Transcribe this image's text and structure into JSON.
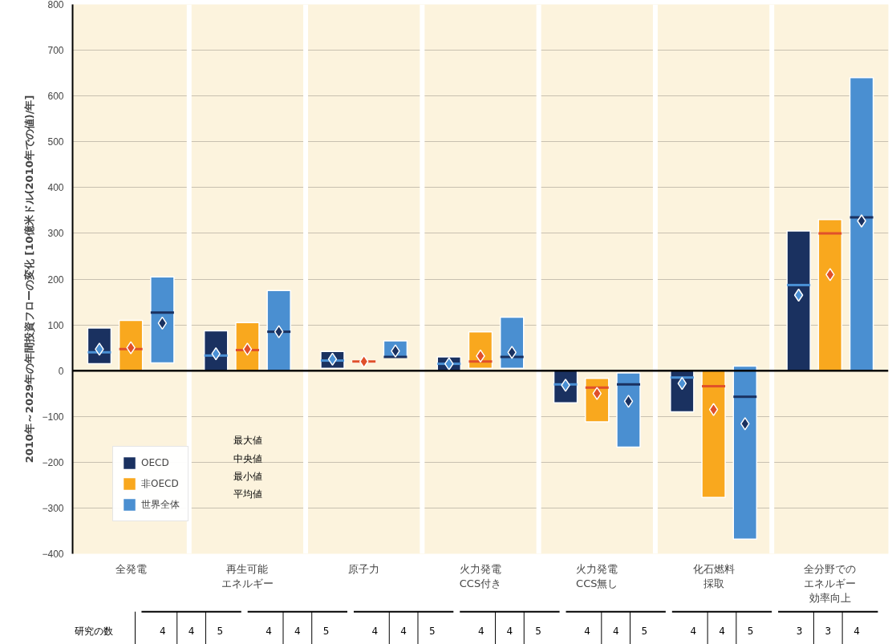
{
  "chart_data": {
    "type": "box",
    "ylabel": "2010年～2029年の年間投資フローの変化 [10億米ドル(2010年での値)/年]",
    "categories": [
      "全発電",
      "再生可能エネルギー",
      "原子力",
      "火力発電\nCCS付き",
      "火力発電\nCCS無し",
      "化石燃料採取",
      "全分野でのエネルギー効率向上"
    ],
    "series": [
      {
        "name": "OECD",
        "color": "#1a3160",
        "boxes": [
          {
            "low": 15,
            "q1": 15,
            "median": 40,
            "q3": 93,
            "high": 93,
            "mean": 47
          },
          {
            "low": 0,
            "q1": 0,
            "median": 33,
            "q3": 87,
            "high": 87,
            "mean": 37
          },
          {
            "low": 5,
            "q1": 5,
            "median": 22,
            "q3": 42,
            "high": 42,
            "mean": 25
          },
          {
            "low": 0,
            "q1": 0,
            "median": 15,
            "q3": 30,
            "high": 30,
            "mean": 15
          },
          {
            "low": -70,
            "q1": -70,
            "median": -30,
            "q3": 0,
            "high": 0,
            "mean": -32
          },
          {
            "low": -90,
            "q1": -90,
            "median": -15,
            "q3": 0,
            "high": 0,
            "mean": -28
          },
          {
            "low": 0,
            "q1": 0,
            "median": 187,
            "q3": 305,
            "high": 305,
            "mean": 165
          }
        ]
      },
      {
        "name": "非OECD",
        "color": "#f9a81e",
        "boxes": [
          {
            "low": 0,
            "q1": 0,
            "median": 47,
            "q3": 110,
            "high": 110,
            "mean": 50
          },
          {
            "low": 0,
            "q1": 0,
            "median": 45,
            "q3": 105,
            "high": 105,
            "mean": 47
          },
          {
            "low": 18,
            "q1": 18,
            "median": 20,
            "q3": 22,
            "high": 22,
            "mean": 20
          },
          {
            "low": 5,
            "q1": 5,
            "median": 20,
            "q3": 85,
            "high": 85,
            "mean": 32
          },
          {
            "low": -112,
            "q1": -112,
            "median": -37,
            "q3": -17,
            "high": -17,
            "mean": -50
          },
          {
            "low": -277,
            "q1": -277,
            "median": -34,
            "q3": 0,
            "high": 0,
            "mean": -85
          },
          {
            "low": 0,
            "q1": 0,
            "median": 300,
            "q3": 330,
            "high": 330,
            "mean": 210
          }
        ]
      },
      {
        "name": "世界全体",
        "color": "#4a8fd1",
        "boxes": [
          {
            "low": 17,
            "q1": 17,
            "median": 127,
            "q3": 205,
            "high": 205,
            "mean": 104
          },
          {
            "low": 0,
            "q1": 0,
            "median": 85,
            "q3": 175,
            "high": 175,
            "mean": 85
          },
          {
            "low": 30,
            "q1": 30,
            "median": 30,
            "q3": 65,
            "high": 65,
            "mean": 43
          },
          {
            "low": 5,
            "q1": 5,
            "median": 30,
            "q3": 117,
            "high": 117,
            "mean": 40
          },
          {
            "low": -167,
            "q1": -167,
            "median": -30,
            "q3": -5,
            "high": -5,
            "mean": -67
          },
          {
            "low": -368,
            "q1": -368,
            "median": -57,
            "q3": 10,
            "high": 10,
            "mean": -116
          },
          {
            "low": 0,
            "q1": 0,
            "median": 335,
            "q3": 640,
            "high": 640,
            "mean": 327
          }
        ]
      }
    ],
    "ylim": [
      -400,
      800
    ],
    "yticks": [
      -400,
      -300,
      -200,
      -100,
      0,
      100,
      200,
      300,
      400,
      500,
      600,
      700,
      800
    ],
    "grid": "y",
    "legend": "bottom left",
    "marker": "diamond",
    "ref_lines": [
      {
        "axis": "y",
        "value": 0,
        "color": "#000000"
      }
    ],
    "annotations": [
      "最大値",
      "中央値",
      "最小値",
      "平均値",
      "研究の数",
      "4",
      "4",
      "5",
      "4",
      "4",
      "5",
      "4",
      "4",
      "5",
      "4",
      "4",
      "5",
      "4",
      "4",
      "5",
      "4",
      "4",
      "5",
      "3",
      "3",
      "4"
    ]
  }
}
